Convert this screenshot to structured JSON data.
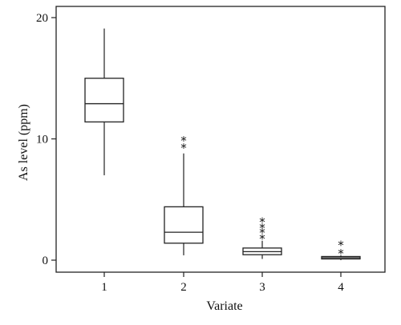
{
  "chart_data": {
    "type": "box",
    "xlabel": "Variate",
    "ylabel": "As level (ppm)",
    "categories": [
      "1",
      "2",
      "3",
      "4"
    ],
    "yticks": [
      0,
      10,
      20
    ],
    "ylim": [
      -0.5,
      20
    ],
    "grid": false,
    "boxes": [
      {
        "category": "1",
        "min": 7.0,
        "q1": 11.4,
        "median": 12.9,
        "q3": 15.0,
        "max": 19.1,
        "outliers": []
      },
      {
        "category": "2",
        "min": 0.4,
        "q1": 1.4,
        "median": 2.3,
        "q3": 4.4,
        "max": 8.8,
        "outliers": [
          9.5,
          10.1
        ]
      },
      {
        "category": "3",
        "min": 0.1,
        "q1": 0.45,
        "median": 0.7,
        "q3": 1.0,
        "max": 1.6,
        "outliers": [
          2.0,
          2.5,
          2.9,
          3.4
        ]
      },
      {
        "category": "4",
        "min": 0.0,
        "q1": 0.1,
        "median": 0.2,
        "q3": 0.3,
        "max": 0.4,
        "outliers": [
          0.8,
          1.5
        ]
      }
    ],
    "outlier_symbol": "*"
  }
}
